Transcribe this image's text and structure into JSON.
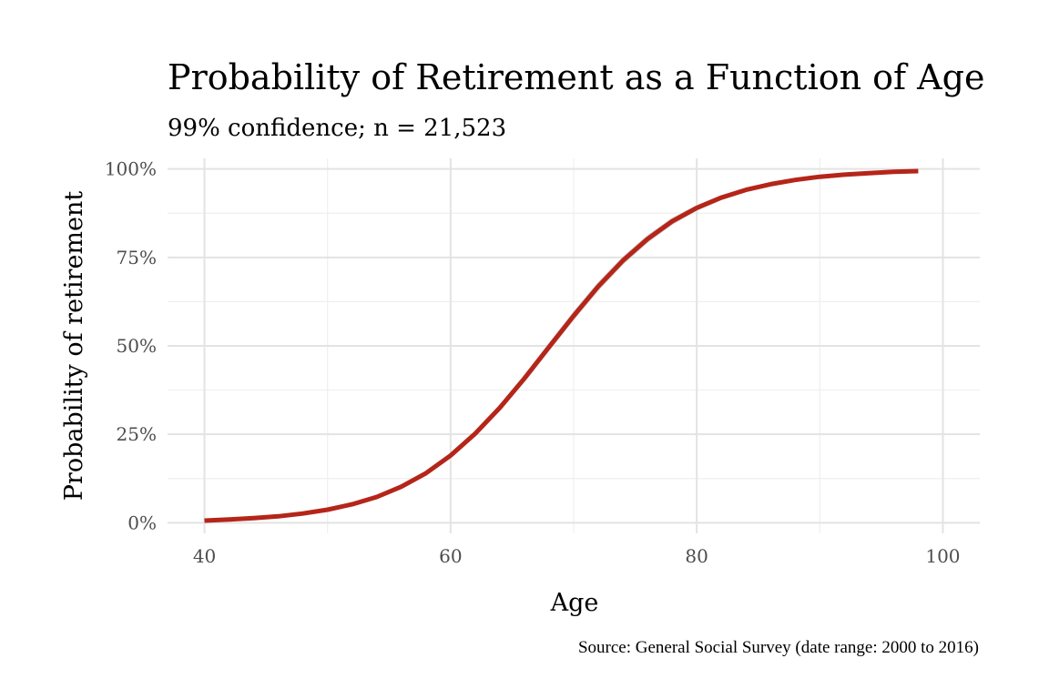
{
  "chart_data": {
    "type": "line",
    "title": "Probability of Retirement as a Function of Age",
    "subtitle": "99% confidence; n = 21,523",
    "xlabel": "Age",
    "ylabel": "Probability of retirement",
    "caption": "Source: General Social Survey (date range: 2000 to 2016)",
    "xlim": [
      37,
      103
    ],
    "ylim": [
      -0.03,
      1.03
    ],
    "x_ticks": [
      40,
      60,
      80,
      100
    ],
    "x_tick_labels": [
      "40",
      "60",
      "80",
      "100"
    ],
    "x_minor_ticks": [
      50,
      70,
      90
    ],
    "y_ticks": [
      0,
      0.25,
      0.5,
      0.75,
      1.0
    ],
    "y_tick_labels": [
      "0%",
      "25%",
      "50%",
      "75%",
      "100%"
    ],
    "y_minor_ticks": [
      0.125,
      0.375,
      0.625,
      0.875
    ],
    "grid": true,
    "line_color": "#b52519",
    "ribbon_color": "#cccccc",
    "series": [
      {
        "x": [
          40,
          42,
          44,
          46,
          48,
          50,
          52,
          54,
          56,
          58,
          60,
          62,
          64,
          66,
          68,
          70,
          72,
          74,
          76,
          78,
          80,
          82,
          84,
          86,
          88,
          90,
          92,
          94,
          96,
          98
        ],
        "y": [
          0.006,
          0.009,
          0.013,
          0.018,
          0.026,
          0.037,
          0.052,
          0.073,
          0.102,
          0.14,
          0.19,
          0.252,
          0.325,
          0.408,
          0.497,
          0.585,
          0.668,
          0.741,
          0.802,
          0.852,
          0.89,
          0.919,
          0.941,
          0.957,
          0.969,
          0.978,
          0.984,
          0.988,
          0.992,
          0.994
        ],
        "y_lower": [
          0.004,
          0.007,
          0.011,
          0.016,
          0.024,
          0.035,
          0.05,
          0.07,
          0.099,
          0.137,
          0.187,
          0.246,
          0.316,
          0.397,
          0.485,
          0.572,
          0.655,
          0.729,
          0.791,
          0.842,
          0.882,
          0.912,
          0.935,
          0.952,
          0.965,
          0.975,
          0.981,
          0.986,
          0.99,
          0.992
        ],
        "y_upper": [
          0.008,
          0.011,
          0.015,
          0.02,
          0.028,
          0.039,
          0.054,
          0.076,
          0.105,
          0.143,
          0.193,
          0.258,
          0.334,
          0.419,
          0.509,
          0.598,
          0.681,
          0.753,
          0.813,
          0.862,
          0.898,
          0.926,
          0.947,
          0.962,
          0.973,
          0.981,
          0.987,
          0.991,
          0.994,
          0.996
        ]
      }
    ]
  }
}
